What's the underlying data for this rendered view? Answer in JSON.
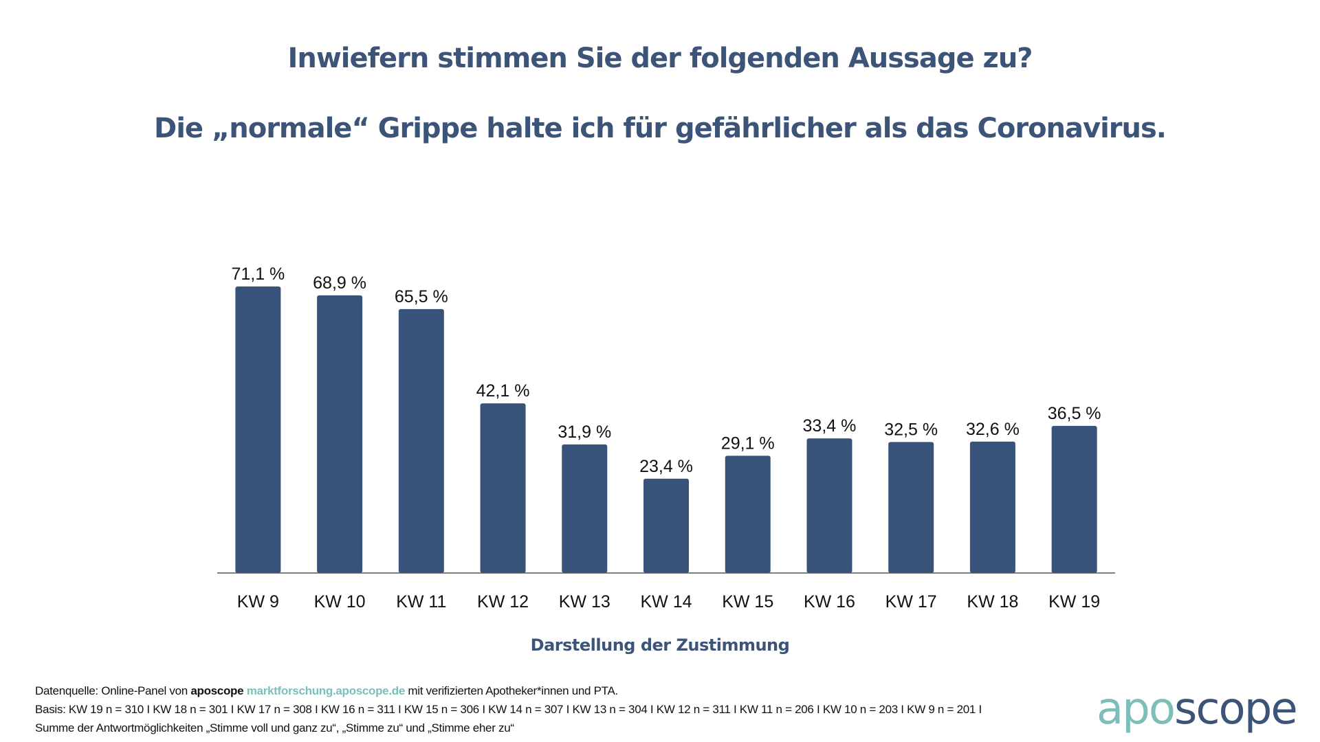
{
  "title": "Inwiefern stimmen Sie der folgenden Aussage zu?",
  "subtitle": "Die „normale“ Grippe halte ich für gefährlicher als das Coronavirus.",
  "x_caption": "Darstellung der Zustimmung",
  "colors": {
    "bar": "#37537a",
    "title": "#3d5479",
    "accent": "#7cbfb8",
    "axis": "#7f7f7f"
  },
  "chart_data": {
    "type": "bar",
    "title": "Inwiefern stimmen Sie der folgenden Aussage zu? Die „normale“ Grippe halte ich für gefährlicher als das Coronavirus.",
    "xlabel": "Darstellung der Zustimmung",
    "ylabel": "",
    "categories": [
      "KW 9",
      "KW 10",
      "KW 11",
      "KW 12",
      "KW 13",
      "KW 14",
      "KW 15",
      "KW 16",
      "KW 17",
      "KW 18",
      "KW 19"
    ],
    "values": [
      71.1,
      68.9,
      65.5,
      42.1,
      31.9,
      23.4,
      29.1,
      33.4,
      32.5,
      32.6,
      36.5
    ],
    "value_labels": [
      "71,1 %",
      "68,9 %",
      "65,5 %",
      "42,1 %",
      "31,9 %",
      "23,4 %",
      "29,1 %",
      "33,4 %",
      "32,5 %",
      "32,6 %",
      "36,5 %"
    ],
    "unit": "%",
    "ylim": [
      0,
      100
    ],
    "grid": false,
    "legend": "none"
  },
  "footer": {
    "source_prefix": "Datenquelle: Online-Panel von ",
    "source_brand": "aposcope",
    "source_link": "marktforschung.aposcope.de",
    "source_suffix": " mit verifizierten Apotheker*innen und PTA.",
    "basis": "Basis: KW 19 n = 310 I KW 18 n = 301 I KW 17 n = 308 I KW 16 n = 311 I KW 15 n = 306 I KW 14 n = 307 I KW 13 n = 304 I KW 12 n = 311 I KW 11 n = 206 I KW 10 n = 203 I KW 9 n = 201 I",
    "note": "Summe der Antwortmöglichkeiten „Stimme voll und ganz zu“, „Stimme zu“ und „Stimme eher zu“"
  },
  "logo": {
    "part1": "apo",
    "part2": "scope"
  }
}
